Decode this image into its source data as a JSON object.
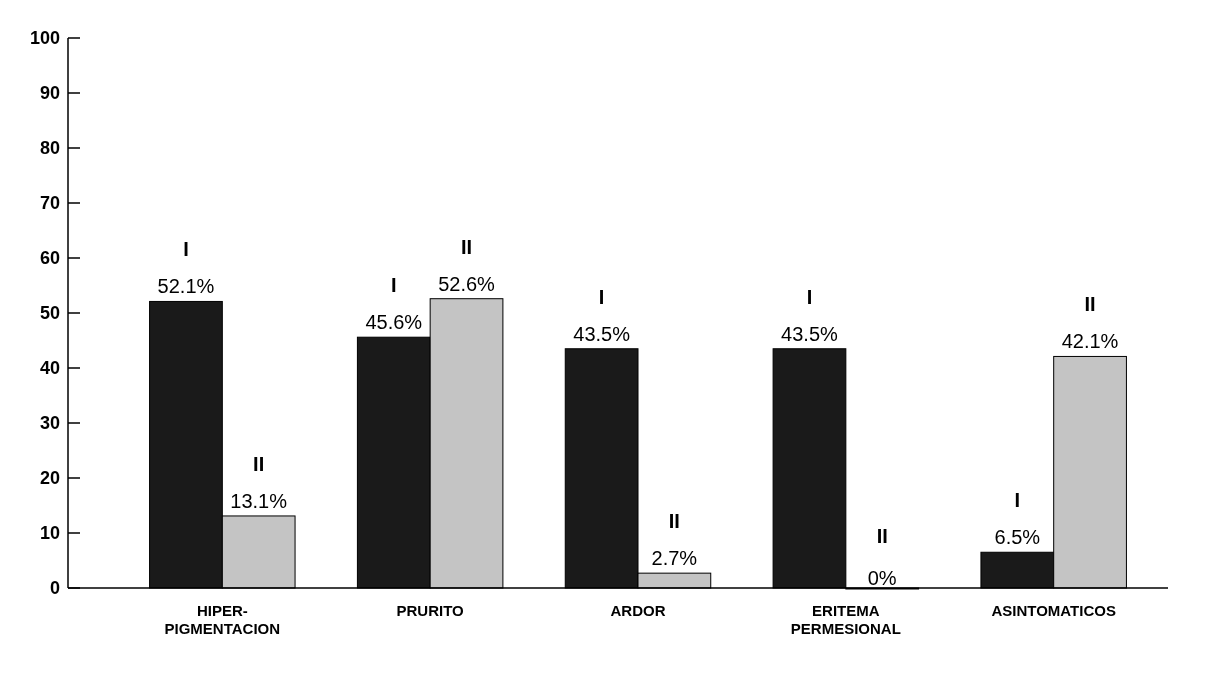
{
  "chart_data": {
    "type": "bar",
    "categories": [
      "HIPER-\nPIGMENTACION",
      "PRURITO",
      "ARDOR",
      "ERITEMA\nPERMESIONAL",
      "ASINTOMATICOS"
    ],
    "series": [
      {
        "name": "I",
        "color": "#1a1a1a",
        "values": [
          52.1,
          45.6,
          43.5,
          43.5,
          6.5
        ],
        "value_labels": [
          "52.1%",
          "45.6%",
          "43.5%",
          "43.5%",
          "6.5%"
        ]
      },
      {
        "name": "II",
        "color": "#c4c4c4",
        "values": [
          13.1,
          52.6,
          2.7,
          0,
          42.1
        ],
        "value_labels": [
          "13.1%",
          "52.6%",
          "2.7%",
          "0%",
          "42.1%"
        ]
      }
    ],
    "ylim": [
      0,
      100
    ],
    "yticks": [
      0,
      10,
      20,
      30,
      40,
      50,
      60,
      70,
      80,
      90,
      100
    ],
    "grid": false
  }
}
